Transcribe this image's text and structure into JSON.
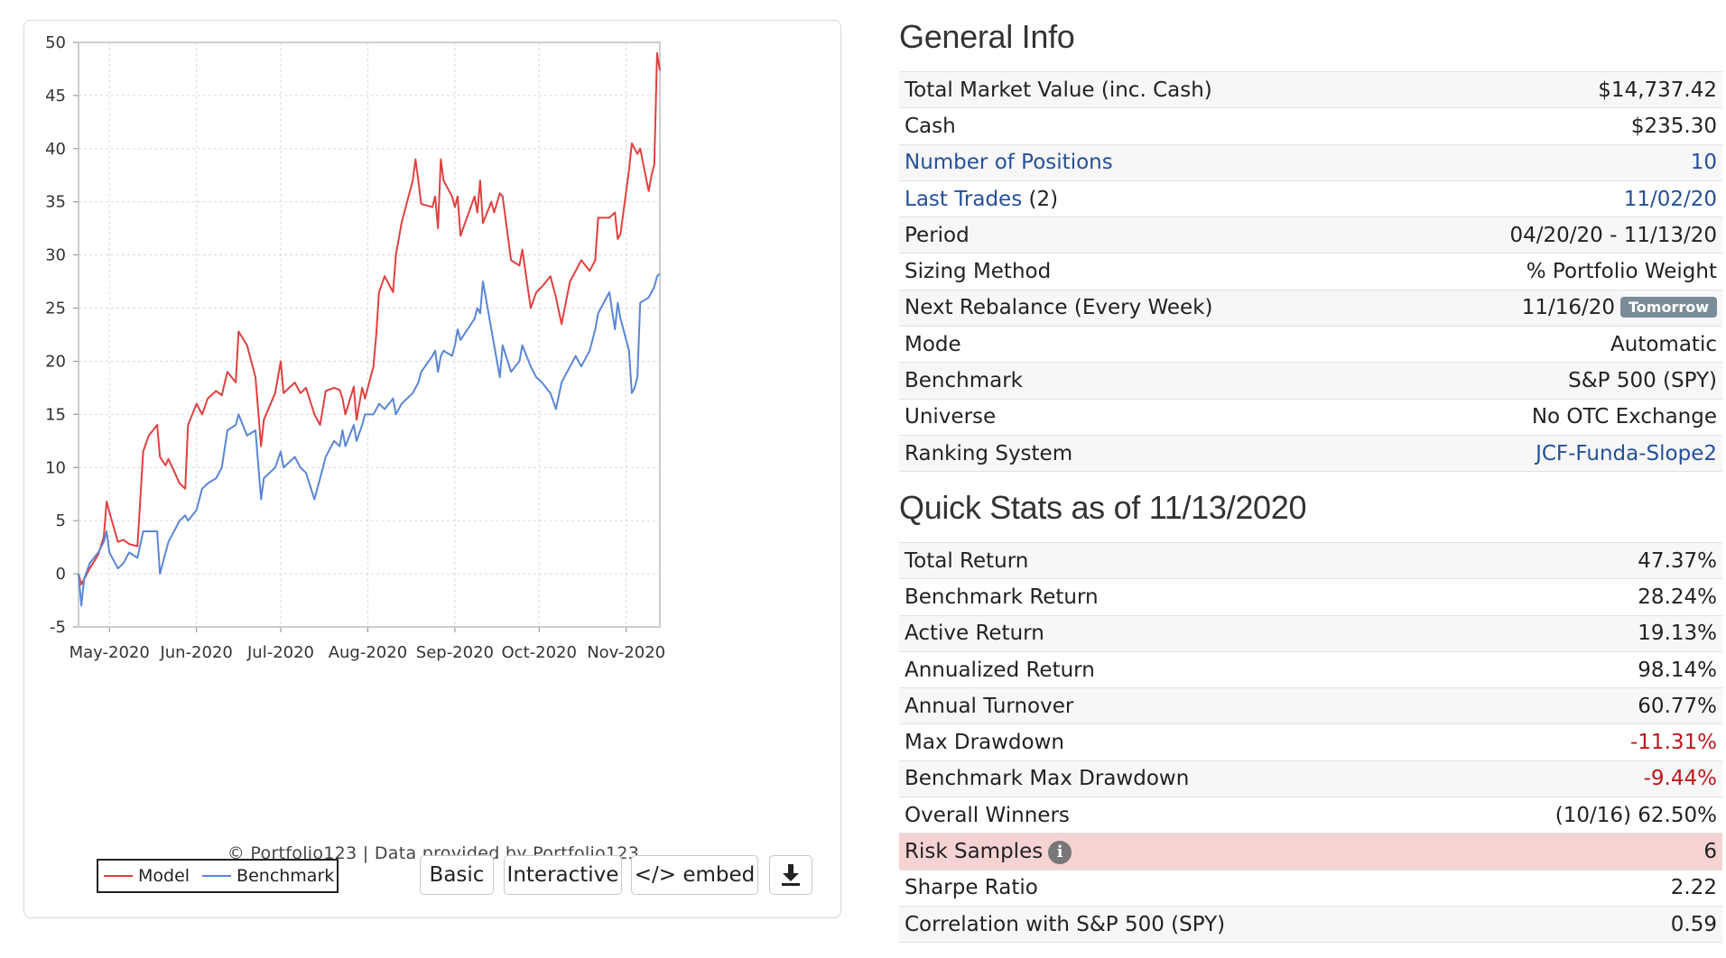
{
  "chart": {
    "credit": "© Portfolio123 | Data provided by Portfolio123",
    "legend": {
      "model": "Model",
      "benchmark": "Benchmark"
    },
    "buttons": {
      "basic": "Basic",
      "interactive": "Interactive",
      "embed": "</> embed",
      "download_icon": "download-icon"
    },
    "colors": {
      "model": "#e04040",
      "benchmark": "#5a86d6"
    }
  },
  "chart_data": {
    "type": "line",
    "title": "",
    "xlabel": "",
    "ylabel": "",
    "ylim": [
      -5,
      50
    ],
    "yticks": [
      -5,
      0,
      5,
      10,
      15,
      20,
      25,
      30,
      35,
      40,
      45,
      50
    ],
    "xticks": [
      "May-2020",
      "Jun-2020",
      "Jul-2020",
      "Aug-2020",
      "Sep-2020",
      "Oct-2020",
      "Nov-2020"
    ],
    "xlim": [
      "2020-04-20",
      "2020-11-13"
    ],
    "grid": true,
    "legend": "bottom-left",
    "series": [
      {
        "name": "Model",
        "color": "#e04040",
        "points": [
          [
            "2020-04-20",
            0
          ],
          [
            "2020-04-21",
            -1
          ],
          [
            "2020-04-22",
            -0.5
          ],
          [
            "2020-04-24",
            0.5
          ],
          [
            "2020-04-27",
            1.8
          ],
          [
            "2020-04-29",
            3.5
          ],
          [
            "2020-04-30",
            6.8
          ],
          [
            "2020-05-01",
            5.8
          ],
          [
            "2020-05-04",
            3
          ],
          [
            "2020-05-06",
            3.2
          ],
          [
            "2020-05-08",
            2.8
          ],
          [
            "2020-05-11",
            2.6
          ],
          [
            "2020-05-13",
            11.5
          ],
          [
            "2020-05-15",
            13
          ],
          [
            "2020-05-18",
            14
          ],
          [
            "2020-05-19",
            11
          ],
          [
            "2020-05-21",
            10.2
          ],
          [
            "2020-05-22",
            10.8
          ],
          [
            "2020-05-26",
            8.5
          ],
          [
            "2020-05-28",
            8
          ],
          [
            "2020-05-29",
            14
          ],
          [
            "2020-06-01",
            16
          ],
          [
            "2020-06-03",
            15
          ],
          [
            "2020-06-05",
            16.5
          ],
          [
            "2020-06-08",
            17.2
          ],
          [
            "2020-06-10",
            16.8
          ],
          [
            "2020-06-12",
            19
          ],
          [
            "2020-06-15",
            18
          ],
          [
            "2020-06-16",
            22.8
          ],
          [
            "2020-06-19",
            21.5
          ],
          [
            "2020-06-22",
            18.5
          ],
          [
            "2020-06-24",
            12
          ],
          [
            "2020-06-25",
            14.5
          ],
          [
            "2020-06-29",
            17
          ],
          [
            "2020-07-01",
            20
          ],
          [
            "2020-07-02",
            17
          ],
          [
            "2020-07-06",
            18
          ],
          [
            "2020-07-08",
            17
          ],
          [
            "2020-07-10",
            17.5
          ],
          [
            "2020-07-13",
            15
          ],
          [
            "2020-07-15",
            14
          ],
          [
            "2020-07-17",
            17.2
          ],
          [
            "2020-07-20",
            17.5
          ],
          [
            "2020-07-22",
            17.3
          ],
          [
            "2020-07-23",
            16.5
          ],
          [
            "2020-07-24",
            15
          ],
          [
            "2020-07-27",
            17.6
          ],
          [
            "2020-07-28",
            14.5
          ],
          [
            "2020-07-30",
            17.5
          ],
          [
            "2020-07-31",
            16.5
          ],
          [
            "2020-08-03",
            19.5
          ],
          [
            "2020-08-04",
            22.5
          ],
          [
            "2020-08-05",
            26.5
          ],
          [
            "2020-08-07",
            28
          ],
          [
            "2020-08-10",
            26.5
          ],
          [
            "2020-08-11",
            30
          ],
          [
            "2020-08-13",
            33
          ],
          [
            "2020-08-17",
            37
          ],
          [
            "2020-08-18",
            39
          ],
          [
            "2020-08-19",
            37
          ],
          [
            "2020-08-20",
            34.8
          ],
          [
            "2020-08-24",
            34.5
          ],
          [
            "2020-08-25",
            35.5
          ],
          [
            "2020-08-26",
            32.5
          ],
          [
            "2020-08-27",
            39
          ],
          [
            "2020-08-28",
            37
          ],
          [
            "2020-08-31",
            35.5
          ],
          [
            "2020-09-01",
            34.5
          ],
          [
            "2020-09-02",
            35.5
          ],
          [
            "2020-09-03",
            31.8
          ],
          [
            "2020-09-08",
            35.5
          ],
          [
            "2020-09-09",
            34
          ],
          [
            "2020-09-10",
            37
          ],
          [
            "2020-09-11",
            33
          ],
          [
            "2020-09-14",
            35
          ],
          [
            "2020-09-15",
            34
          ],
          [
            "2020-09-17",
            35.8
          ],
          [
            "2020-09-18",
            35.5
          ],
          [
            "2020-09-21",
            29.5
          ],
          [
            "2020-09-24",
            29
          ],
          [
            "2020-09-25",
            30.5
          ],
          [
            "2020-09-28",
            25
          ],
          [
            "2020-09-30",
            26.5
          ],
          [
            "2020-10-02",
            27
          ],
          [
            "2020-10-05",
            28
          ],
          [
            "2020-10-07",
            26
          ],
          [
            "2020-10-09",
            23.5
          ],
          [
            "2020-10-12",
            27.5
          ],
          [
            "2020-10-14",
            28.5
          ],
          [
            "2020-10-16",
            29.5
          ],
          [
            "2020-10-19",
            28.5
          ],
          [
            "2020-10-21",
            29.5
          ],
          [
            "2020-10-22",
            33.5
          ],
          [
            "2020-10-26",
            33.5
          ],
          [
            "2020-10-28",
            34
          ],
          [
            "2020-10-29",
            31.5
          ],
          [
            "2020-10-30",
            32
          ],
          [
            "2020-11-02",
            38
          ],
          [
            "2020-11-03",
            40.5
          ],
          [
            "2020-11-04",
            40
          ],
          [
            "2020-11-05",
            39.5
          ],
          [
            "2020-11-06",
            40
          ],
          [
            "2020-11-09",
            36
          ],
          [
            "2020-11-10",
            37.5
          ],
          [
            "2020-11-11",
            38.5
          ],
          [
            "2020-11-12",
            49
          ],
          [
            "2020-11-13",
            47.37
          ]
        ]
      },
      {
        "name": "Benchmark",
        "color": "#5a86d6",
        "points": [
          [
            "2020-04-20",
            0
          ],
          [
            "2020-04-21",
            -3
          ],
          [
            "2020-04-22",
            -0.5
          ],
          [
            "2020-04-24",
            1
          ],
          [
            "2020-04-27",
            2
          ],
          [
            "2020-04-29",
            3
          ],
          [
            "2020-04-30",
            4
          ],
          [
            "2020-05-01",
            2
          ],
          [
            "2020-05-04",
            0.5
          ],
          [
            "2020-05-06",
            1
          ],
          [
            "2020-05-08",
            2
          ],
          [
            "2020-05-11",
            1.5
          ],
          [
            "2020-05-13",
            4
          ],
          [
            "2020-05-15",
            4
          ],
          [
            "2020-05-18",
            4
          ],
          [
            "2020-05-19",
            0
          ],
          [
            "2020-05-21",
            2
          ],
          [
            "2020-05-22",
            3
          ],
          [
            "2020-05-26",
            5
          ],
          [
            "2020-05-28",
            5.5
          ],
          [
            "2020-05-29",
            5
          ],
          [
            "2020-06-01",
            6
          ],
          [
            "2020-06-03",
            8
          ],
          [
            "2020-06-05",
            8.5
          ],
          [
            "2020-06-08",
            9
          ],
          [
            "2020-06-10",
            10
          ],
          [
            "2020-06-12",
            13.5
          ],
          [
            "2020-06-15",
            14
          ],
          [
            "2020-06-16",
            15
          ],
          [
            "2020-06-19",
            13
          ],
          [
            "2020-06-22",
            13.5
          ],
          [
            "2020-06-24",
            7
          ],
          [
            "2020-06-25",
            9
          ],
          [
            "2020-06-29",
            10
          ],
          [
            "2020-07-01",
            11.5
          ],
          [
            "2020-07-02",
            10
          ],
          [
            "2020-07-06",
            11
          ],
          [
            "2020-07-08",
            10
          ],
          [
            "2020-07-10",
            9.5
          ],
          [
            "2020-07-13",
            7
          ],
          [
            "2020-07-15",
            9
          ],
          [
            "2020-07-17",
            11
          ],
          [
            "2020-07-20",
            12.5
          ],
          [
            "2020-07-22",
            12
          ],
          [
            "2020-07-23",
            13.5
          ],
          [
            "2020-07-24",
            12
          ],
          [
            "2020-07-27",
            14
          ],
          [
            "2020-07-28",
            12.5
          ],
          [
            "2020-07-30",
            14
          ],
          [
            "2020-07-31",
            15
          ],
          [
            "2020-08-03",
            15
          ],
          [
            "2020-08-04",
            15.5
          ],
          [
            "2020-08-05",
            16
          ],
          [
            "2020-08-07",
            15.5
          ],
          [
            "2020-08-10",
            16.5
          ],
          [
            "2020-08-11",
            15
          ],
          [
            "2020-08-13",
            16
          ],
          [
            "2020-08-17",
            17
          ],
          [
            "2020-08-18",
            17.5
          ],
          [
            "2020-08-19",
            18
          ],
          [
            "2020-08-20",
            19
          ],
          [
            "2020-08-24",
            20.5
          ],
          [
            "2020-08-25",
            21
          ],
          [
            "2020-08-26",
            19
          ],
          [
            "2020-08-27",
            20.5
          ],
          [
            "2020-08-28",
            21
          ],
          [
            "2020-08-31",
            20.5
          ],
          [
            "2020-09-01",
            21.5
          ],
          [
            "2020-09-02",
            23
          ],
          [
            "2020-09-03",
            22
          ],
          [
            "2020-09-08",
            24
          ],
          [
            "2020-09-09",
            25
          ],
          [
            "2020-09-10",
            24.5
          ],
          [
            "2020-09-11",
            27.5
          ],
          [
            "2020-09-14",
            23
          ],
          [
            "2020-09-15",
            21.5
          ],
          [
            "2020-09-17",
            18.5
          ],
          [
            "2020-09-18",
            21.5
          ],
          [
            "2020-09-21",
            19
          ],
          [
            "2020-09-24",
            20
          ],
          [
            "2020-09-25",
            21.5
          ],
          [
            "2020-09-28",
            19.5
          ],
          [
            "2020-09-30",
            18.5
          ],
          [
            "2020-10-02",
            18
          ],
          [
            "2020-10-05",
            17
          ],
          [
            "2020-10-07",
            15.5
          ],
          [
            "2020-10-09",
            18
          ],
          [
            "2020-10-12",
            19.5
          ],
          [
            "2020-10-14",
            20.5
          ],
          [
            "2020-10-16",
            19.5
          ],
          [
            "2020-10-19",
            21
          ],
          [
            "2020-10-21",
            23
          ],
          [
            "2020-10-22",
            24.5
          ],
          [
            "2020-10-26",
            26.5
          ],
          [
            "2020-10-28",
            23
          ],
          [
            "2020-10-29",
            25.5
          ],
          [
            "2020-10-30",
            24
          ],
          [
            "2020-11-02",
            21
          ],
          [
            "2020-11-03",
            17
          ],
          [
            "2020-11-04",
            17.5
          ],
          [
            "2020-11-05",
            18.5
          ],
          [
            "2020-11-06",
            25.5
          ],
          [
            "2020-11-09",
            26
          ],
          [
            "2020-11-10",
            26.5
          ],
          [
            "2020-11-11",
            27
          ],
          [
            "2020-11-12",
            28
          ],
          [
            "2020-11-13",
            28.24
          ]
        ]
      }
    ]
  },
  "general_info": {
    "title": "General Info",
    "rows": [
      {
        "label": "Total Market Value (inc. Cash)",
        "value": "$14,737.42"
      },
      {
        "label": "Cash",
        "value": "$235.30"
      },
      {
        "label": "Number of Positions",
        "value": "10"
      },
      {
        "label": "Last Trades",
        "label_suffix": "(2)",
        "value": "11/02/20"
      },
      {
        "label": "Period",
        "value": "04/20/20 - 11/13/20"
      },
      {
        "label": "Sizing Method",
        "value": "% Portfolio Weight"
      },
      {
        "label": "Next Rebalance (Every Week)",
        "value": "11/16/20",
        "badge": "Tomorrow"
      },
      {
        "label": "Mode",
        "value": "Automatic"
      },
      {
        "label": "Benchmark",
        "value": "S&P 500 (SPY)"
      },
      {
        "label": "Universe",
        "value": "No OTC Exchange"
      },
      {
        "label": "Ranking System",
        "value": "JCF-Funda-Slope2"
      }
    ]
  },
  "quick_stats": {
    "title": "Quick Stats as of 11/13/2020",
    "rows": [
      {
        "label": "Total Return",
        "value": "47.37%"
      },
      {
        "label": "Benchmark Return",
        "value": "28.24%"
      },
      {
        "label": "Active Return",
        "value": "19.13%"
      },
      {
        "label": "Annualized Return",
        "value": "98.14%"
      },
      {
        "label": "Annual Turnover",
        "value": "60.77%"
      },
      {
        "label": "Max Drawdown",
        "value": "-11.31%"
      },
      {
        "label": "Benchmark Max Drawdown",
        "value": "-9.44%"
      },
      {
        "label": "Overall Winners",
        "value": "(10/16) 62.50%"
      },
      {
        "label": "Risk Samples",
        "value": "6",
        "icon": "info-icon"
      },
      {
        "label": "Sharpe Ratio",
        "value": "2.22"
      },
      {
        "label": "Correlation with S&P 500 (SPY)",
        "value": "0.59"
      }
    ]
  }
}
